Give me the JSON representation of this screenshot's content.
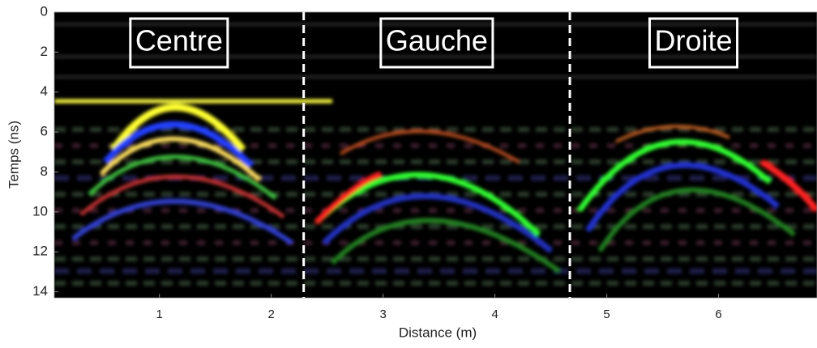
{
  "chart_data": {
    "type": "image",
    "xlabel": "Distance (m)",
    "ylabel": "Temps (ns)",
    "xlim": [
      0.06,
      6.88
    ],
    "ylim": [
      0,
      14.3
    ],
    "y_inverted": true,
    "xticks": [
      1,
      2,
      3,
      4,
      5,
      6
    ],
    "yticks": [
      0,
      2,
      4,
      6,
      8,
      10,
      12,
      14
    ],
    "dividers": [
      2.29,
      4.67
    ],
    "regions": [
      "Centre",
      "Gauche",
      "Droite"
    ]
  }
}
